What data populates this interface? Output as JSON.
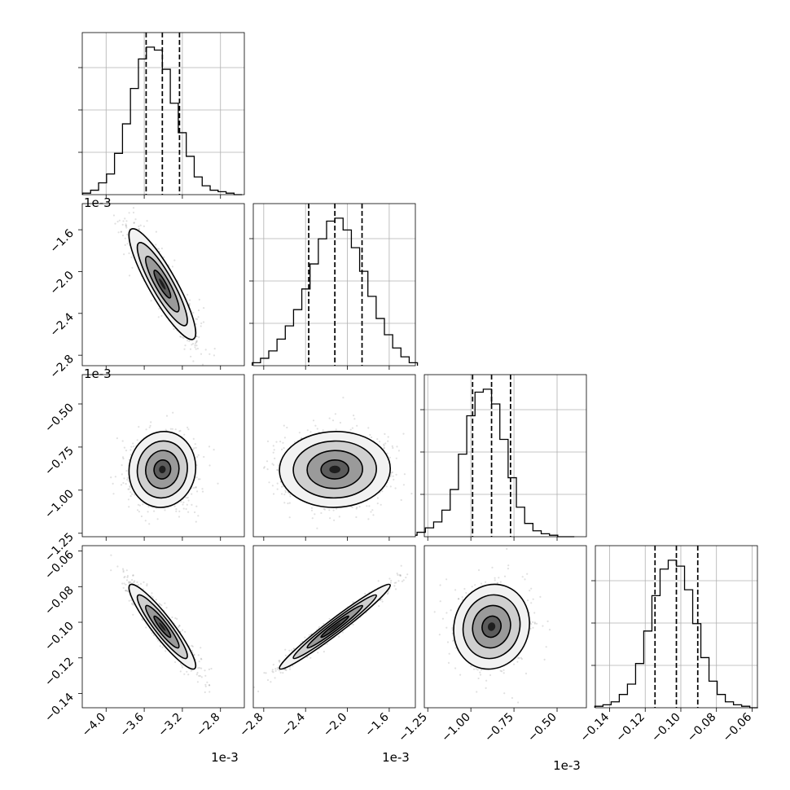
{
  "chart_data": {
    "type": "corner",
    "grid": true,
    "parameters": [
      {
        "range": [
          -0.00425,
          -0.00255
        ],
        "scale_label": "1e-3",
        "tick_values": [
          -0.004,
          -0.0036,
          -0.0032,
          -0.0028
        ],
        "tick_labels": [
          "−4.0",
          "−3.6",
          "−3.2",
          "−2.8"
        ],
        "quantiles": [
          -0.00358,
          -0.00341,
          -0.00323
        ],
        "hist_bin_width": 8.36e-05,
        "hist_counts": [
          1,
          3,
          8,
          14,
          28,
          48,
          72,
          92,
          100,
          98,
          85,
          62,
          42,
          26,
          12,
          6,
          3,
          2,
          1,
          0
        ]
      },
      {
        "range": [
          -0.0029,
          -0.00135
        ],
        "scale_label": "1e-3",
        "tick_values": [
          -0.0028,
          -0.0024,
          -0.002,
          -0.0016
        ],
        "tick_labels": [
          "−2.8",
          "−2.4",
          "−2.0",
          "−1.6"
        ],
        "quantiles": [
          -0.00237,
          -0.00212,
          -0.00186
        ],
        "hist_bin_width": 7.9e-05,
        "hist_counts": [
          2,
          5,
          10,
          18,
          27,
          38,
          52,
          69,
          86,
          98,
          100,
          92,
          80,
          64,
          47,
          32,
          21,
          12,
          6,
          2
        ]
      },
      {
        "range": [
          -0.00127,
          -0.00033
        ],
        "scale_label": "1e-3",
        "tick_values": [
          -0.00125,
          -0.001,
          -0.00075,
          -0.0005
        ],
        "tick_labels": [
          "−1.25",
          "−1.00",
          "−0.75",
          "−0.50"
        ],
        "quantiles": [
          -0.00099,
          -0.00088,
          -0.00077
        ],
        "hist_bin_width": 4.8e-05,
        "hist_counts": [
          1,
          3,
          6,
          10,
          18,
          32,
          56,
          82,
          98,
          100,
          90,
          66,
          40,
          20,
          9,
          4,
          2,
          1,
          0,
          0
        ]
      },
      {
        "range": [
          -0.148,
          -0.057
        ],
        "scale_label": "",
        "tick_values": [
          -0.14,
          -0.12,
          -0.1,
          -0.08,
          -0.06
        ],
        "tick_labels": [
          "−0.14",
          "−0.12",
          "−0.10",
          "−0.08",
          "−0.06"
        ],
        "quantiles": [
          -0.1145,
          -0.1025,
          -0.0905
        ],
        "hist_bin_width": 0.00458,
        "hist_counts": [
          1,
          2,
          4,
          9,
          16,
          30,
          52,
          76,
          94,
          100,
          96,
          80,
          57,
          34,
          18,
          9,
          4,
          2,
          1,
          0
        ]
      }
    ],
    "pairs": [
      {
        "xi": 0,
        "yi": 1,
        "mean": [
          -0.00341,
          -0.00212
        ],
        "sd": [
          0.000175,
          0.000265
        ],
        "corr": -0.88
      },
      {
        "xi": 0,
        "yi": 2,
        "mean": [
          -0.00341,
          -0.00088
        ],
        "sd": [
          0.000175,
          0.00011
        ],
        "corr": 0.05
      },
      {
        "xi": 1,
        "yi": 2,
        "mean": [
          -0.00212,
          -0.00088
        ],
        "sd": [
          0.000265,
          0.00011
        ],
        "corr": 0.02
      },
      {
        "xi": 0,
        "yi": 3,
        "mean": [
          -0.00341,
          -0.1025
        ],
        "sd": [
          0.000175,
          0.0119
        ],
        "corr": -0.92
      },
      {
        "xi": 1,
        "yi": 3,
        "mean": [
          -0.00212,
          -0.1025
        ],
        "sd": [
          0.000265,
          0.0119
        ],
        "corr": 0.975
      },
      {
        "xi": 2,
        "yi": 3,
        "mean": [
          -0.00088,
          -0.1025
        ],
        "sd": [
          0.00011,
          0.0119
        ],
        "corr": 0.08
      }
    ]
  }
}
